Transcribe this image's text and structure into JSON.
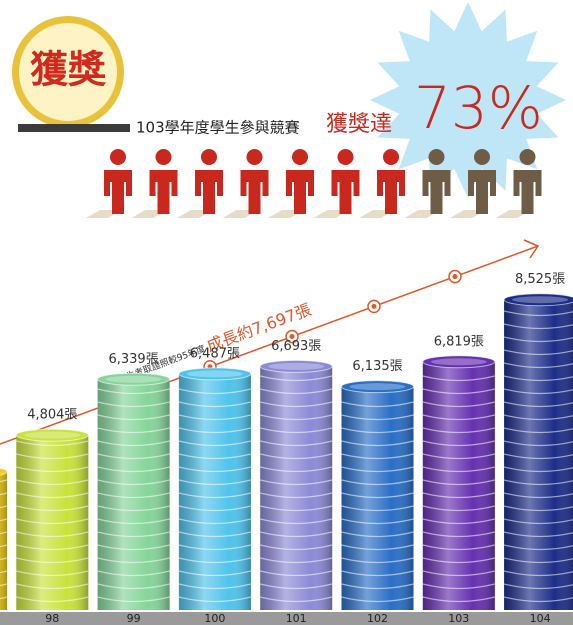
{
  "award": {
    "badge": "獲獎",
    "caption": "103學年度學生參與競賽",
    "highlight": "獲獎達",
    "rate": {
      "value": 73,
      "label": "73%"
    },
    "people_total": 10,
    "people_awarded": 7
  },
  "chart_data": {
    "type": "bar",
    "categories": [
      null,
      "98",
      "99",
      "100",
      "101",
      "102",
      "103",
      "104"
    ],
    "values": [
      3800,
      4804,
      6339,
      6487,
      6693,
      6135,
      6819,
      8525
    ],
    "value_labels": [
      null,
      "4,804張",
      "6,339張",
      "6,487張",
      "6,693張",
      "6,135張",
      "6,819張",
      "8,525張"
    ],
    "colors": [
      "#f2cf1a",
      "#c9e23c",
      "#86d49a",
      "#4fc3ec",
      "#8c8ad6",
      "#2a6ec6",
      "#6630b0",
      "#1d2d88"
    ],
    "annotation": {
      "prefix": "學生考取證照較95年度",
      "growth": "成長約7,697張"
    }
  }
}
